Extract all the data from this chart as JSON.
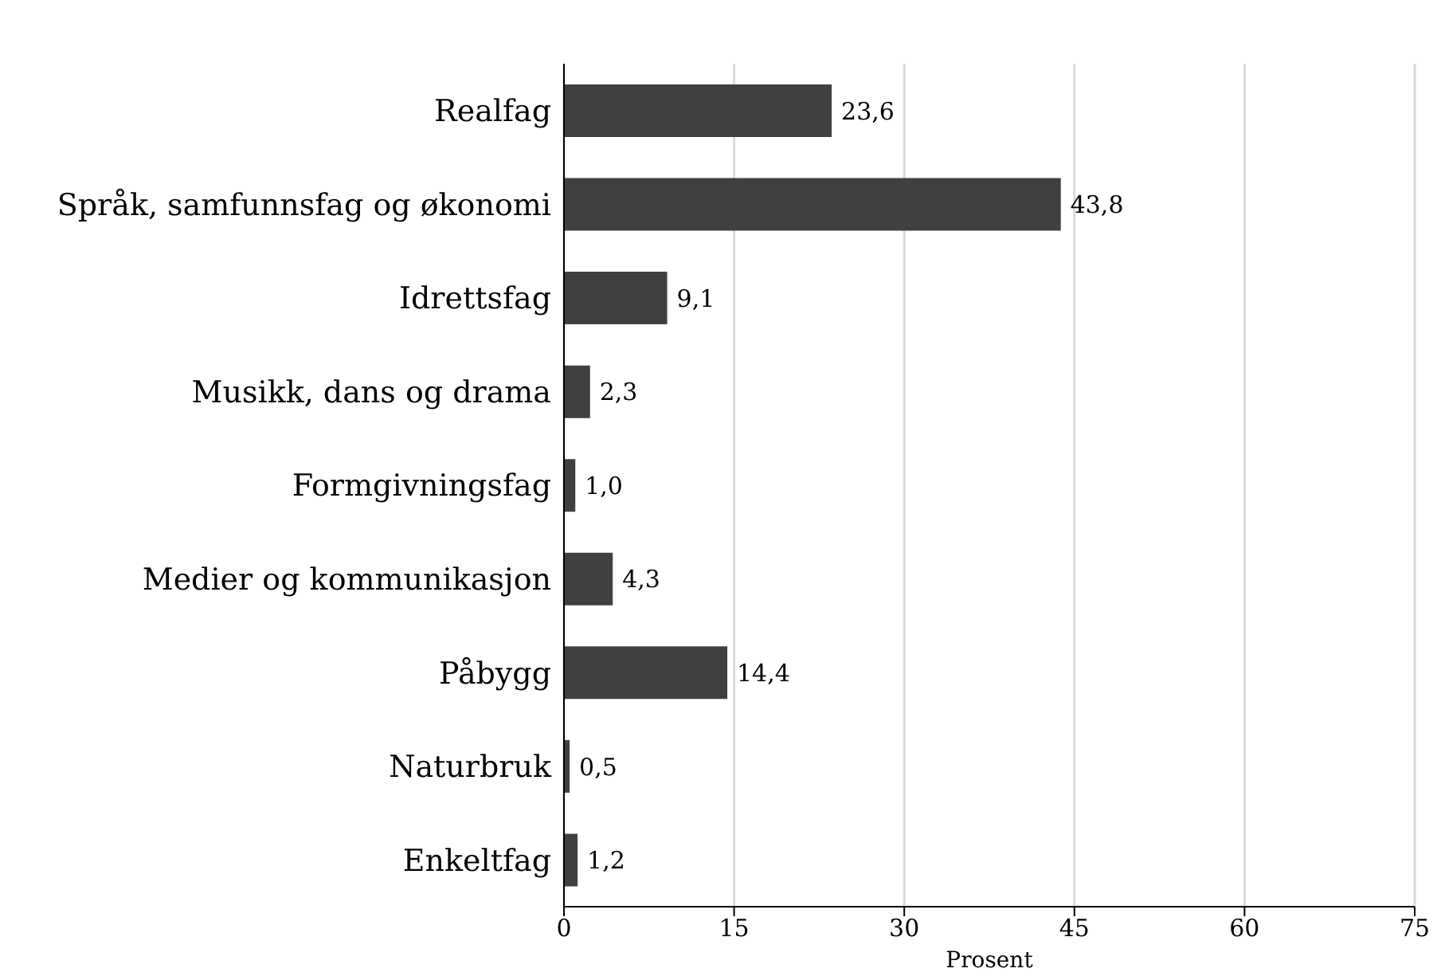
{
  "chart_data": {
    "type": "bar",
    "orientation": "horizontal",
    "xlabel": "Prosent",
    "categories": [
      "Realfag",
      "Språk, samfunnsfag og økonomi",
      "Idrettsfag",
      "Musikk, dans og drama",
      "Formgivningsfag",
      "Medier og kommunikasjon",
      "Påbygg",
      "Naturbruk",
      "Enkeltfag"
    ],
    "values": [
      23.6,
      43.8,
      9.1,
      2.3,
      1.0,
      4.3,
      14.4,
      0.5,
      1.2
    ],
    "value_labels": [
      "23,6",
      "43,8",
      "9,1",
      "2,3",
      "1,0",
      "4,3",
      "14,4",
      "0,5",
      "1,2"
    ],
    "color": "#404040",
    "xlim": [
      0,
      75
    ],
    "xticks": [
      0,
      15,
      30,
      45,
      60,
      75
    ],
    "grid": "x",
    "legend": false
  }
}
